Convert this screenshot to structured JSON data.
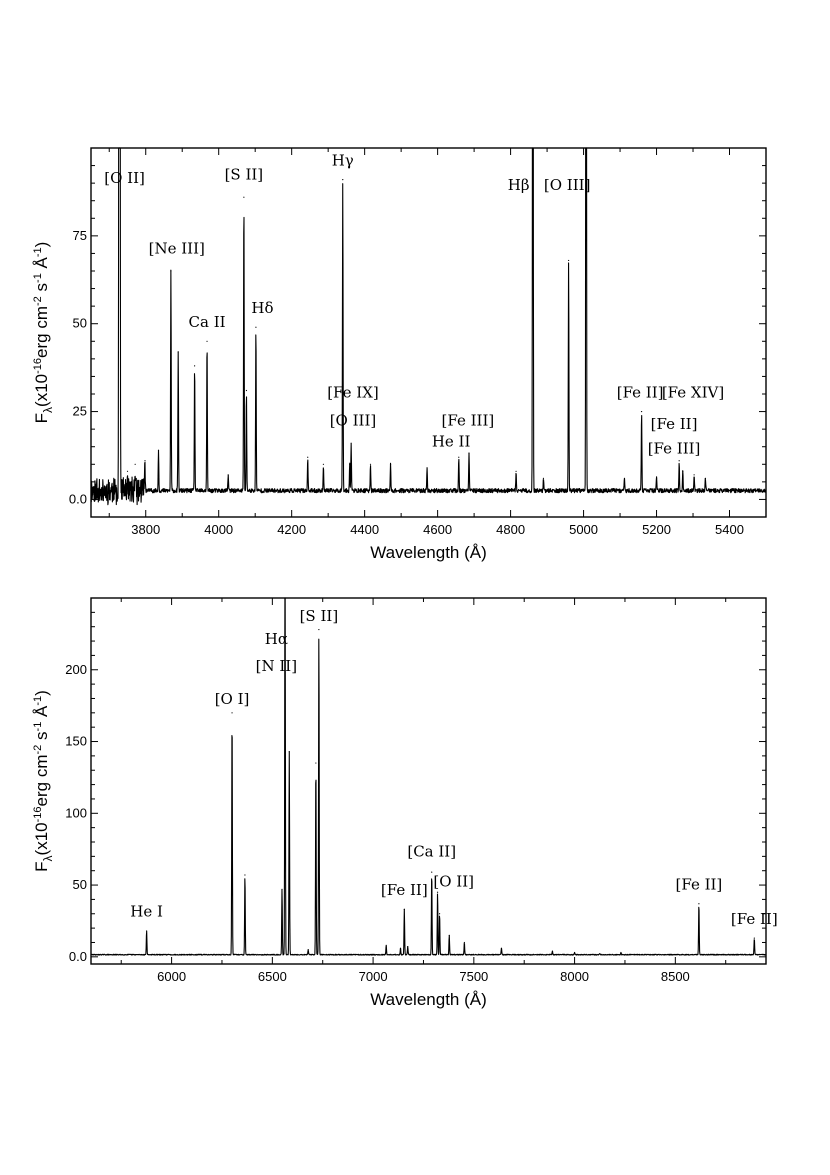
{
  "chart_data": [
    {
      "type": "line",
      "xlabel": "Wavelength (Å)",
      "ylabel": {
        "prefix": "F",
        "sub": "λ",
        "main": "(x10",
        "exp1": "-16",
        "mid1": "erg cm",
        "exp2": "-2",
        "mid2": " s",
        "exp3": "-1",
        "mid3": " Å",
        "exp4": "-1",
        "end": ")"
      },
      "xlim": [
        3650,
        5500
      ],
      "ylim": [
        -5,
        100
      ],
      "xticks": [
        3800,
        4000,
        4200,
        4400,
        4600,
        4800,
        5000,
        5200,
        5400
      ],
      "yticks": [
        0,
        25,
        50,
        75
      ],
      "ytick_labels": [
        "0.0",
        "25",
        "50",
        "75"
      ],
      "continuum": 2.5,
      "lines": [
        {
          "x": 3727,
          "y": 300
        },
        {
          "x": 3729,
          "y": 300
        },
        {
          "x": 3750,
          "y": 8
        },
        {
          "x": 3771,
          "y": 10
        },
        {
          "x": 3798,
          "y": 11
        },
        {
          "x": 3835,
          "y": 14
        },
        {
          "x": 3869,
          "y": 65
        },
        {
          "x": 3889,
          "y": 42
        },
        {
          "x": 3934,
          "y": 38
        },
        {
          "x": 3968,
          "y": 45
        },
        {
          "x": 4026,
          "y": 7
        },
        {
          "x": 4069,
          "y": 86
        },
        {
          "x": 4076,
          "y": 31
        },
        {
          "x": 4102,
          "y": 49
        },
        {
          "x": 4244,
          "y": 12
        },
        {
          "x": 4287,
          "y": 10
        },
        {
          "x": 4340,
          "y": 91
        },
        {
          "x": 4359,
          "y": 10
        },
        {
          "x": 4363,
          "y": 16
        },
        {
          "x": 4416,
          "y": 10
        },
        {
          "x": 4471,
          "y": 10
        },
        {
          "x": 4571,
          "y": 9
        },
        {
          "x": 4658,
          "y": 12
        },
        {
          "x": 4686,
          "y": 13
        },
        {
          "x": 4815,
          "y": 8
        },
        {
          "x": 4861,
          "y": 300
        },
        {
          "x": 4890,
          "y": 6
        },
        {
          "x": 4959,
          "y": 68
        },
        {
          "x": 5007,
          "y": 300
        },
        {
          "x": 5112,
          "y": 6
        },
        {
          "x": 5159,
          "y": 25
        },
        {
          "x": 5200,
          "y": 6
        },
        {
          "x": 5262,
          "y": 11
        },
        {
          "x": 5272,
          "y": 8
        },
        {
          "x": 5303,
          "y": 7
        },
        {
          "x": 5334,
          "y": 6
        },
        {
          "x": 5376,
          "y": 3
        }
      ],
      "annotations": [
        {
          "text": "[O II]",
          "x": 3742,
          "y": 90
        },
        {
          "text": "[Ne III]",
          "x": 3885,
          "y": 70
        },
        {
          "text": "Ca II",
          "x": 3968,
          "y": 49
        },
        {
          "text": "[S II]",
          "x": 4069,
          "y": 91
        },
        {
          "text": "Hδ",
          "x": 4120,
          "y": 53
        },
        {
          "text": "Hγ",
          "x": 4340,
          "y": 95
        },
        {
          "text": "[Fe IX]",
          "x": 4368,
          "y": 29
        },
        {
          "text": "[O III]",
          "x": 4368,
          "y": 21
        },
        {
          "text": "[Fe III]",
          "x": 4683,
          "y": 21
        },
        {
          "text": "He II",
          "x": 4637,
          "y": 15
        },
        {
          "text": "Hβ",
          "x": 4822,
          "y": 88
        },
        {
          "text": "[O III]",
          "x": 4955,
          "y": 88
        },
        {
          "text": "[Fe II]",
          "x": 5155,
          "y": 29
        },
        {
          "text": "[Fe XIV]",
          "x": 5300,
          "y": 29
        },
        {
          "text": "[Fe II]",
          "x": 5248,
          "y": 20
        },
        {
          "text": "[Fe III]",
          "x": 5248,
          "y": 13
        }
      ]
    },
    {
      "type": "line",
      "xlabel": "Wavelength (Å)",
      "ylabel": {
        "prefix": "F",
        "sub": "λ",
        "main": "(x10",
        "exp1": "-16",
        "mid1": "erg cm",
        "exp2": "-2",
        "mid2": " s",
        "exp3": "-1",
        "mid3": " Å",
        "exp4": "-1",
        "end": ")"
      },
      "xlim": [
        5600,
        8950
      ],
      "ylim": [
        -5,
        250
      ],
      "xticks": [
        6000,
        6500,
        7000,
        7500,
        8000,
        8500
      ],
      "yticks": [
        0,
        50,
        100,
        150,
        200
      ],
      "ytick_labels": [
        "0.0",
        "50",
        "100",
        "150",
        "200"
      ],
      "continuum": 1.5,
      "lines": [
        {
          "x": 5876,
          "y": 18
        },
        {
          "x": 6300,
          "y": 170
        },
        {
          "x": 6364,
          "y": 57
        },
        {
          "x": 6548,
          "y": 47
        },
        {
          "x": 6563,
          "y": 300
        },
        {
          "x": 6584,
          "y": 143
        },
        {
          "x": 6678,
          "y": 5
        },
        {
          "x": 6716,
          "y": 135
        },
        {
          "x": 6731,
          "y": 228
        },
        {
          "x": 7065,
          "y": 8
        },
        {
          "x": 7136,
          "y": 6
        },
        {
          "x": 7155,
          "y": 33
        },
        {
          "x": 7172,
          "y": 7
        },
        {
          "x": 7291,
          "y": 59
        },
        {
          "x": 7320,
          "y": 45
        },
        {
          "x": 7330,
          "y": 30
        },
        {
          "x": 7378,
          "y": 15
        },
        {
          "x": 7453,
          "y": 10
        },
        {
          "x": 7637,
          "y": 6
        },
        {
          "x": 7890,
          "y": 4
        },
        {
          "x": 8000,
          "y": 3
        },
        {
          "x": 8125,
          "y": 2
        },
        {
          "x": 8230,
          "y": 3
        },
        {
          "x": 8617,
          "y": 37
        },
        {
          "x": 8892,
          "y": 13
        }
      ],
      "annotations": [
        {
          "text": "He I",
          "x": 5876,
          "y": 28
        },
        {
          "text": "[O I]",
          "x": 6300,
          "y": 176
        },
        {
          "text": "Hα",
          "x": 6520,
          "y": 218
        },
        {
          "text": "[N II]",
          "x": 6520,
          "y": 199
        },
        {
          "text": "[S II]",
          "x": 6731,
          "y": 234
        },
        {
          "text": "[Ca II]",
          "x": 7291,
          "y": 70
        },
        {
          "text": "[Fe II]",
          "x": 7155,
          "y": 43
        },
        {
          "text": "[O II]",
          "x": 7400,
          "y": 49
        },
        {
          "text": "[Fe II]",
          "x": 8617,
          "y": 47
        },
        {
          "text": "[Fe II]",
          "x": 8892,
          "y": 23
        }
      ]
    }
  ]
}
